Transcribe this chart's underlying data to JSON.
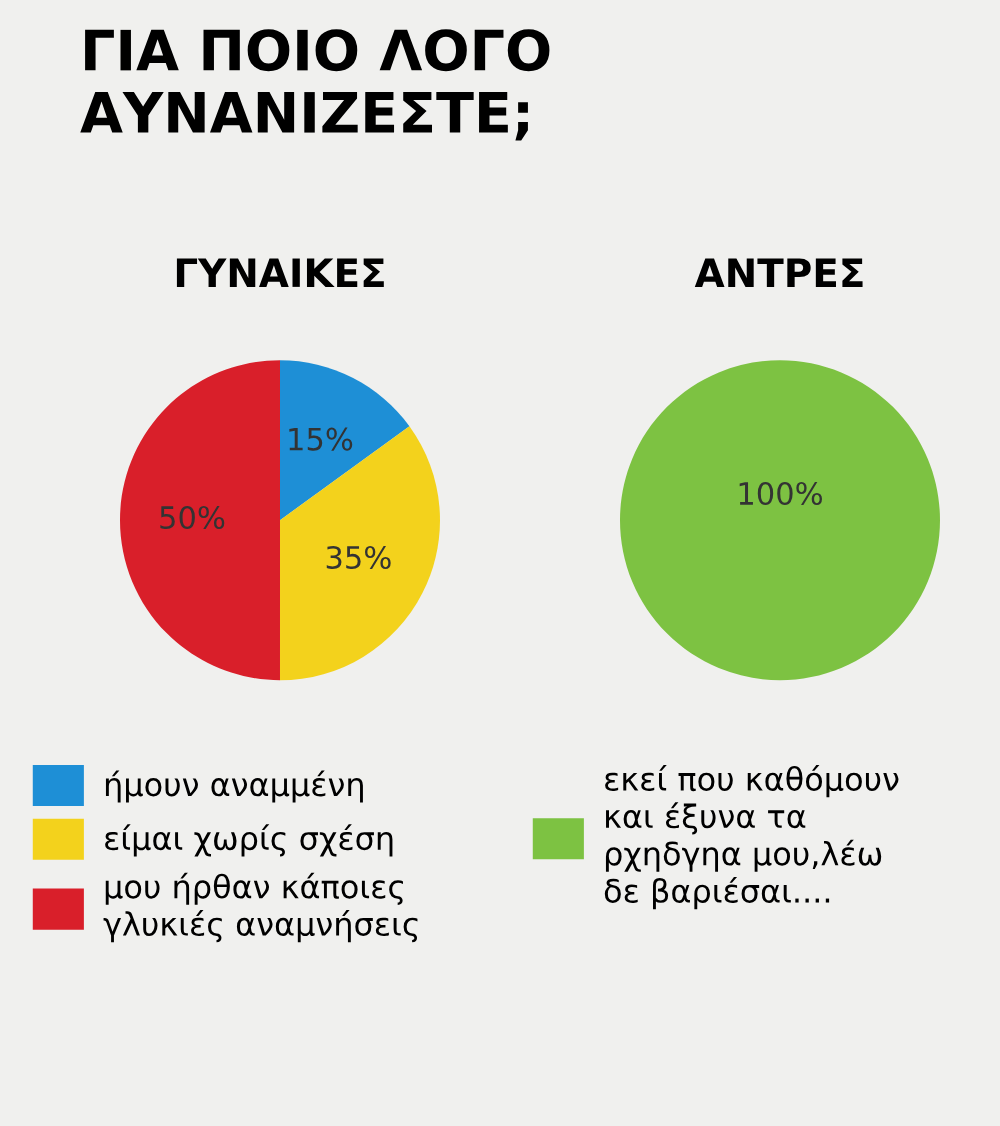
{
  "chart_data": [
    {
      "type": "pie",
      "title": "ΓΙΑ ΠΟΙΟ ΛΟΓΟ\nΑΥΝΑΝΙΖΕΣΤΕ;",
      "subtitle": "ΓΥΝΑΙΚΕΣ",
      "categories": [
        "ήμουν αναμμένη",
        "είμαι χωρίς σχέση",
        "μου ήρθαν κάποιες\nγλυκιές αναμνήσεις"
      ],
      "values": [
        15,
        35,
        50
      ],
      "colors": [
        "#1e8fd6",
        "#f3d21c",
        "#d91f2a"
      ],
      "value_labels": [
        "15%",
        "35%",
        "50%"
      ],
      "legend": "bottom"
    },
    {
      "type": "pie",
      "subtitle": "ΑΝΤΡΕΣ",
      "categories": [
        "εκεί που καθόμουν\nκαι έξυνα τα\nρχηδγηα μου,λέω\nδε βαριέσαι...."
      ],
      "values": [
        100
      ],
      "colors": [
        "#7dc242"
      ],
      "value_labels": [
        "100%"
      ],
      "legend": "bottom"
    }
  ]
}
